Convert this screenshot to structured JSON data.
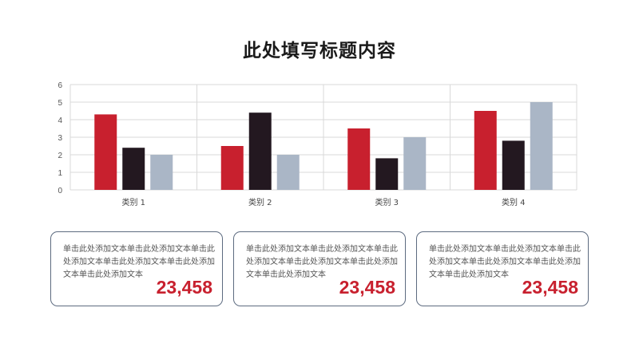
{
  "title": "此处填写标题内容",
  "chart_data": {
    "type": "bar",
    "title": "",
    "xlabel": "",
    "ylabel": "",
    "categories": [
      "类别 1",
      "类别 2",
      "类别 3",
      "类别 4"
    ],
    "ylim": [
      0,
      6
    ],
    "yticks": [
      0,
      1,
      2,
      3,
      4,
      5,
      6
    ],
    "grid": true,
    "legend": "none",
    "series": [
      {
        "values": [
          4.3,
          2.5,
          3.5,
          4.5
        ],
        "color": "#c8202e"
      },
      {
        "values": [
          2.4,
          4.4,
          1.8,
          2.8
        ],
        "color": "#231820"
      },
      {
        "values": [
          2.0,
          2.0,
          3.0,
          5.0
        ],
        "color": "#aab6c6"
      }
    ]
  },
  "cards": [
    {
      "text": "单击此处添加文本单击此处添加文本单击此处添加文本单击此处添加文本单击此处添加文本单击此处添加文本",
      "value": "23,458"
    },
    {
      "text": "单击此处添加文本单击此处添加文本单击此处添加文本单击此处添加文本单击此处添加文本单击此处添加文本",
      "value": "23,458"
    },
    {
      "text": "单击此处添加文本单击此处添加文本单击此处添加文本单击此处添加文本单击此处添加文本单击此处添加文本",
      "value": "23,458"
    }
  ]
}
